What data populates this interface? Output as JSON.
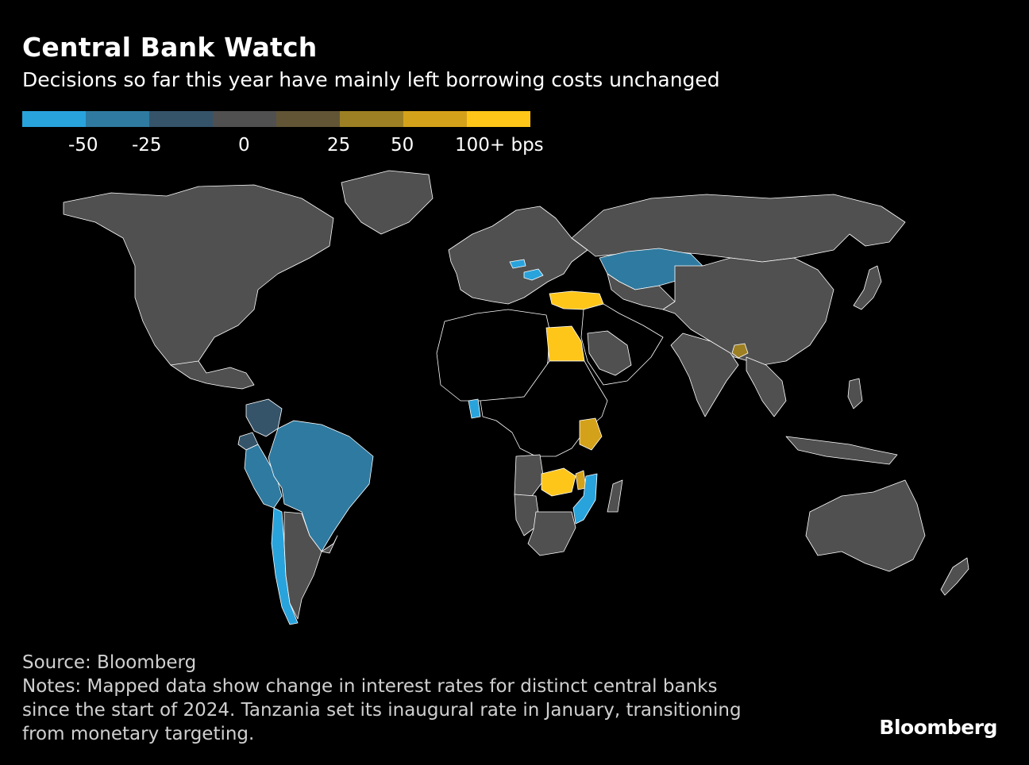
{
  "title": "Central Bank Watch",
  "subtitle": "Decisions so far this year have mainly left borrowing costs unchanged",
  "legend": {
    "swatches": [
      "#29a3dc",
      "#2f7aa0",
      "#35546a",
      "#505050",
      "#615536",
      "#9d8024",
      "#d4a21a",
      "#ffc61a"
    ],
    "labels": [
      "-50",
      "-25",
      "0",
      "25",
      "50",
      "100+ bps"
    ]
  },
  "colors": {
    "neutral": "#505050",
    "no_data": "#000000",
    "cut_50": "#29a3dc",
    "cut_25": "#2f7aa0",
    "cut_small": "#35546a",
    "hike_25": "#9d8024",
    "hike_50": "#d4a21a",
    "hike_100": "#ffc61a",
    "border": "#ffffff"
  },
  "map_regions": {
    "neutral": [
      "Canada",
      "United States",
      "Mexico",
      "Greenland",
      "Russia",
      "China",
      "India",
      "Australia",
      "Japan",
      "Indonesia",
      "Europe",
      "Saudi Arabia",
      "Argentina",
      "Uruguay",
      "South Africa",
      "Angola",
      "Namibia",
      "Madagascar",
      "Philippines",
      "Thailand",
      "Vietnam"
    ],
    "cut_50": [
      "Chile",
      "Ghana",
      "Mozambique",
      "Hungary",
      "Czech Republic"
    ],
    "cut_25": [
      "Brazil",
      "Kazakhstan",
      "Peru"
    ],
    "cut_small": [
      "Colombia",
      "Ecuador"
    ],
    "hike_25": [
      "Bangladesh"
    ],
    "hike_50": [
      "Kenya",
      "Malawi"
    ],
    "hike_100": [
      "Turkey",
      "Egypt",
      "Zambia"
    ]
  },
  "footer": {
    "source": "Source: Bloomberg",
    "notes_line1": "Notes: Mapped data show change in interest rates for distinct central banks",
    "notes_line2": "since the start of 2024. Tanzania set its inaugural rate in January, transitioning",
    "notes_line3": "from monetary targeting."
  },
  "brand": "Bloomberg"
}
